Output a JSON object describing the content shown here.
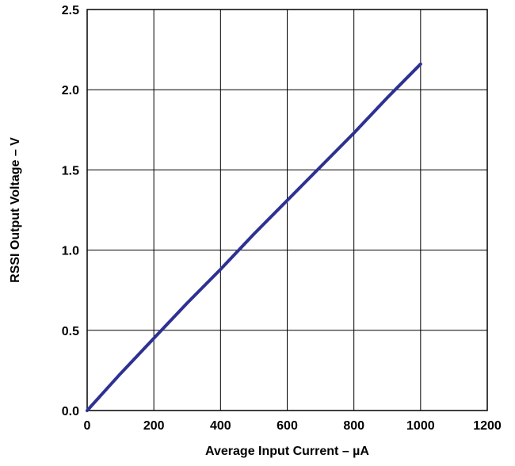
{
  "chart_data": {
    "type": "line",
    "title": "",
    "xlabel": "Average Input Current – µA",
    "ylabel": "RSSI Output Voltage – V",
    "xlim": [
      0,
      1200
    ],
    "ylim": [
      0,
      2.5
    ],
    "grid": true,
    "x_ticks": [
      "0",
      "200",
      "400",
      "600",
      "800",
      "1000",
      "1200"
    ],
    "y_ticks": [
      "0.0",
      "0.5",
      "1.0",
      "1.5",
      "2.0",
      "2.5"
    ],
    "series": [
      {
        "color": "#2e3192",
        "x": [
          0,
          100,
          200,
          300,
          400,
          500,
          600,
          700,
          800,
          900,
          1000
        ],
        "y": [
          0.0,
          0.23,
          0.45,
          0.67,
          0.88,
          1.1,
          1.31,
          1.52,
          1.73,
          1.95,
          2.16
        ]
      }
    ]
  }
}
